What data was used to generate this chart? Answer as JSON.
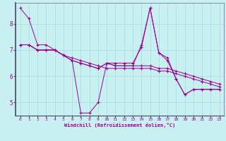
{
  "xlabel": "Windchill (Refroidissement éolien,°C)",
  "bg_color": "#c8f0f0",
  "line_color": "#990099",
  "grid_color": "#a8dada",
  "spine_color": "#7777aa",
  "xlim": [
    -0.5,
    23.5
  ],
  "ylim": [
    4.5,
    8.8
  ],
  "yticks": [
    5,
    6,
    7,
    8
  ],
  "xticks": [
    0,
    1,
    2,
    3,
    4,
    5,
    6,
    7,
    8,
    9,
    10,
    11,
    12,
    13,
    14,
    15,
    16,
    17,
    18,
    19,
    20,
    21,
    22,
    23
  ],
  "series": [
    [
      8.6,
      8.2,
      7.2,
      7.2,
      7.0,
      6.8,
      6.6,
      4.6,
      4.6,
      5.0,
      6.5,
      6.4,
      6.4,
      6.4,
      7.2,
      8.6,
      6.9,
      6.7,
      5.9,
      5.3,
      5.5,
      5.5,
      5.5,
      5.5
    ],
    [
      7.2,
      7.2,
      7.0,
      7.0,
      7.0,
      6.8,
      6.7,
      6.6,
      6.5,
      6.4,
      6.3,
      6.3,
      6.3,
      6.3,
      6.3,
      6.3,
      6.2,
      6.2,
      6.1,
      6.0,
      5.9,
      5.8,
      5.7,
      5.6
    ],
    [
      7.2,
      7.2,
      7.0,
      7.0,
      7.0,
      6.8,
      6.6,
      6.5,
      6.4,
      6.3,
      6.5,
      6.4,
      6.4,
      6.4,
      6.4,
      6.4,
      6.3,
      6.3,
      6.2,
      6.1,
      6.0,
      5.9,
      5.8,
      5.7
    ],
    [
      7.2,
      7.2,
      7.0,
      7.0,
      7.0,
      6.8,
      6.6,
      6.5,
      6.4,
      6.3,
      6.5,
      6.5,
      6.5,
      6.5,
      7.1,
      8.6,
      6.9,
      6.6,
      5.9,
      5.3,
      5.5,
      5.5,
      5.5,
      5.5
    ]
  ]
}
